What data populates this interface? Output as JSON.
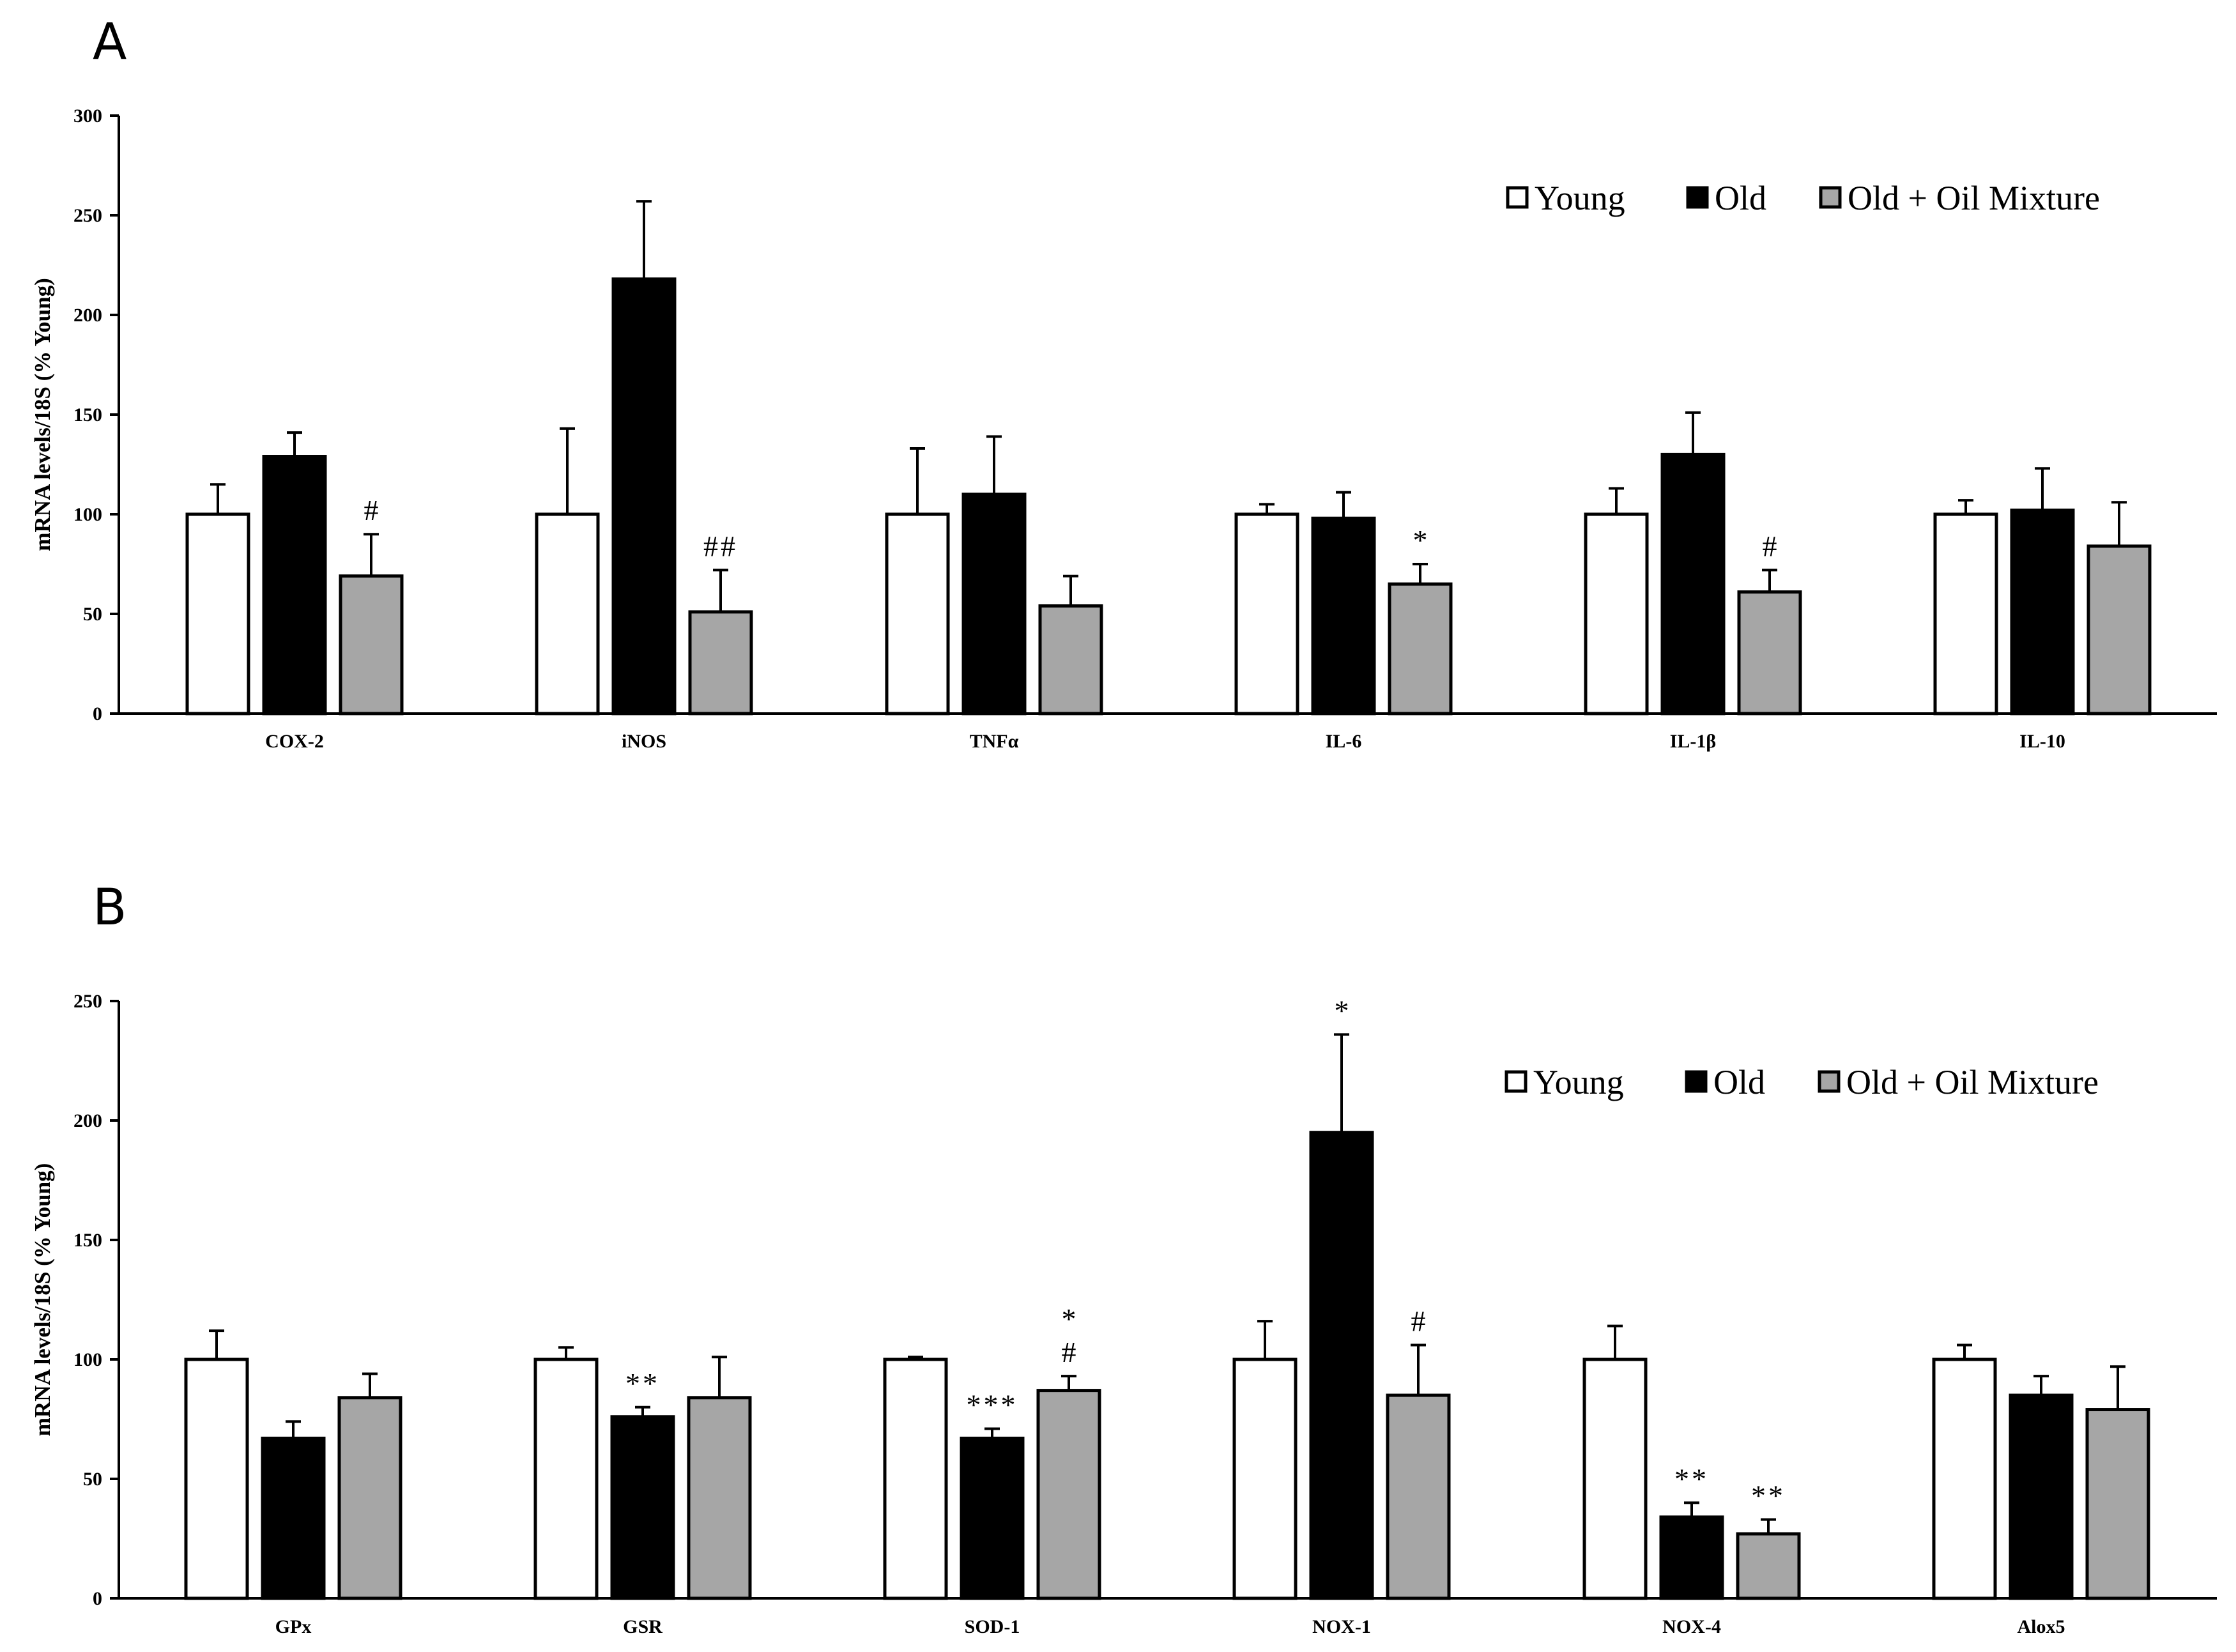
{
  "chart_data": [
    {
      "panel": "A",
      "type": "bar",
      "ylabel": "mRNA levels/18S (% Young)",
      "ylim": [
        0,
        300
      ],
      "yticks": [
        0,
        50,
        100,
        150,
        200,
        250,
        300
      ],
      "categories": [
        "COX-2",
        "iNOS",
        "TNFα",
        "IL-6",
        "IL-1β",
        "IL-10"
      ],
      "legend": [
        "Young",
        "Old",
        "Old + Oil Mixture"
      ],
      "series": [
        {
          "name": "Young",
          "color": "#ffffff",
          "values": [
            100,
            100,
            100,
            100,
            100,
            100
          ],
          "errors": [
            15,
            43,
            33,
            5,
            13,
            7
          ],
          "annotations": [
            "",
            "",
            "",
            "",
            "",
            ""
          ]
        },
        {
          "name": "Old",
          "color": "#000000",
          "values": [
            129,
            218,
            110,
            98,
            130,
            102
          ],
          "errors": [
            12,
            39,
            29,
            13,
            21,
            21
          ],
          "annotations": [
            "",
            "",
            "",
            "",
            "",
            ""
          ]
        },
        {
          "name": "Old + Oil Mixture",
          "color": "#a6a6a6",
          "values": [
            69,
            51,
            54,
            65,
            61,
            84
          ],
          "errors": [
            21,
            21,
            15,
            10,
            11,
            22
          ],
          "annotations": [
            "#",
            "##",
            "",
            "*",
            "#",
            ""
          ]
        }
      ]
    },
    {
      "panel": "B",
      "type": "bar",
      "ylabel": "mRNA levels/18S (% Young)",
      "ylim": [
        0,
        250
      ],
      "yticks": [
        0,
        50,
        100,
        150,
        200,
        250
      ],
      "categories": [
        "GPx",
        "GSR",
        "SOD-1",
        "NOX-1",
        "NOX-4",
        "Alox5"
      ],
      "legend": [
        "Young",
        "Old",
        "Old + Oil Mixture"
      ],
      "series": [
        {
          "name": "Young",
          "color": "#ffffff",
          "values": [
            100,
            100,
            100,
            100,
            100,
            100
          ],
          "errors": [
            12,
            5,
            1,
            16,
            14,
            6
          ],
          "annotations": [
            "",
            "",
            "",
            "",
            "",
            ""
          ]
        },
        {
          "name": "Old",
          "color": "#000000",
          "values": [
            67,
            76,
            67,
            195,
            34,
            85
          ],
          "errors": [
            7,
            4,
            4,
            41,
            6,
            8
          ],
          "annotations": [
            "",
            "**",
            "***",
            "*",
            "**",
            ""
          ]
        },
        {
          "name": "Old + Oil Mixture",
          "color": "#a6a6a6",
          "values": [
            84,
            84,
            87,
            85,
            27,
            79
          ],
          "errors": [
            10,
            17,
            6,
            21,
            6,
            18
          ],
          "annotations": [
            "",
            "",
            "*\n#",
            "#",
            "**",
            ""
          ]
        }
      ]
    }
  ]
}
